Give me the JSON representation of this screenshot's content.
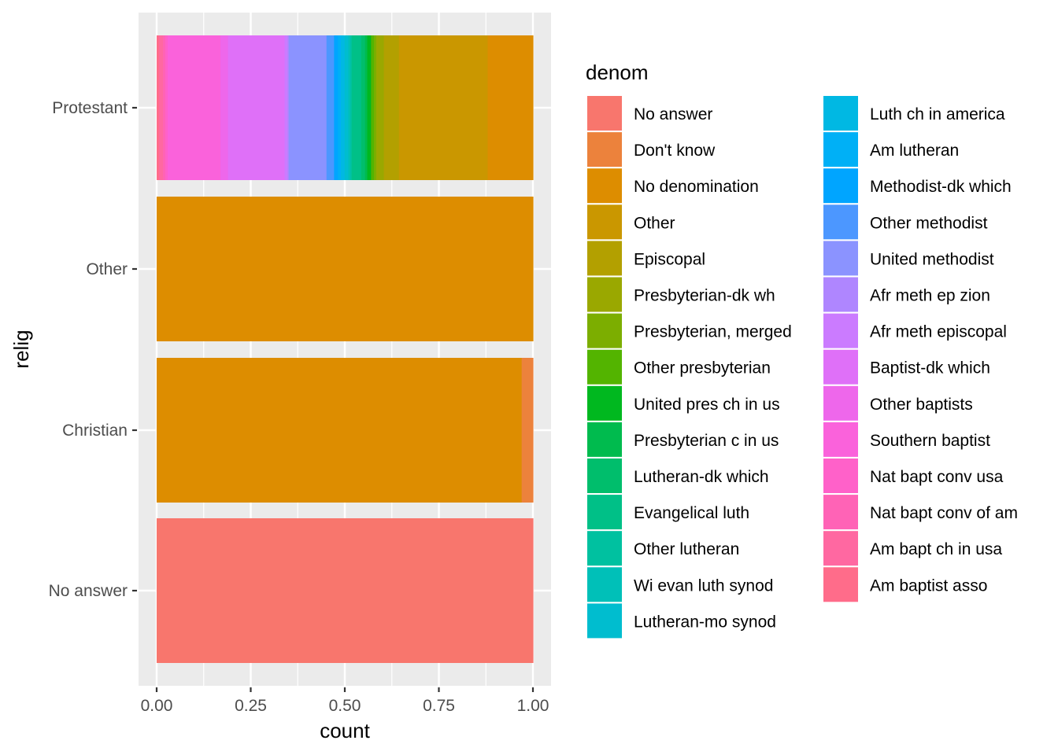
{
  "chart_data": {
    "type": "bar",
    "orientation": "horizontal",
    "position": "fill",
    "xlabel": "count",
    "ylabel": "relig",
    "xlim": [
      0,
      1
    ],
    "x_ticks": [
      "0.00",
      "0.25",
      "0.50",
      "0.75",
      "1.00"
    ],
    "categories": [
      "Protestant",
      "Other",
      "Christian",
      "No answer"
    ],
    "legend": {
      "title": "denom",
      "placement": "right",
      "columns": 2,
      "entries": [
        {
          "name": "No answer",
          "color": "#F8766D"
        },
        {
          "name": "Don't know",
          "color": "#EC823C"
        },
        {
          "name": "No denomination",
          "color": "#DD8D00"
        },
        {
          "name": "Other",
          "color": "#CA9700"
        },
        {
          "name": "Episcopal",
          "color": "#B3A000"
        },
        {
          "name": "Presbyterian-dk wh",
          "color": "#9AA800"
        },
        {
          "name": "Presbyterian, merged",
          "color": "#7CAE00"
        },
        {
          "name": "Other presbyterian",
          "color": "#53B400"
        },
        {
          "name": "United pres ch in us",
          "color": "#00B81F"
        },
        {
          "name": "Presbyterian c in us",
          "color": "#00BB4E"
        },
        {
          "name": "Lutheran-dk which",
          "color": "#00BE6C"
        },
        {
          "name": "Evangelical luth",
          "color": "#00C087"
        },
        {
          "name": "Other lutheran",
          "color": "#00C1A0"
        },
        {
          "name": "Wi evan luth synod",
          "color": "#00C0B8"
        },
        {
          "name": "Lutheran-mo synod",
          "color": "#00BDCF"
        },
        {
          "name": "Luth ch in america",
          "color": "#00B8E3"
        },
        {
          "name": "Am lutheran",
          "color": "#00B0F6"
        },
        {
          "name": "Methodist-dk which",
          "color": "#00A5FF"
        },
        {
          "name": "Other methodist",
          "color": "#4C97FF"
        },
        {
          "name": "United methodist",
          "color": "#8B93FF"
        },
        {
          "name": "Afr meth ep zion",
          "color": "#AF86FF"
        },
        {
          "name": "Afr meth episcopal",
          "color": "#CB7BFF"
        },
        {
          "name": "Baptist-dk which",
          "color": "#DF70F8"
        },
        {
          "name": "Other baptists",
          "color": "#EE67EB"
        },
        {
          "name": "Southern baptist",
          "color": "#FA62DB"
        },
        {
          "name": "Nat bapt conv usa",
          "color": "#FF61C9"
        },
        {
          "name": "Nat bapt conv of am",
          "color": "#FF63B6"
        },
        {
          "name": "Am bapt ch in usa",
          "color": "#FF68A1"
        },
        {
          "name": "Am baptist asso",
          "color": "#FF6C8A"
        }
      ]
    },
    "stacks": [
      {
        "category": "Protestant",
        "segments": [
          {
            "denom": "Am baptist asso",
            "value": 0.007
          },
          {
            "denom": "Am bapt ch in usa",
            "value": 0.01
          },
          {
            "denom": "Nat bapt conv of am",
            "value": 0.006
          },
          {
            "denom": "Nat bapt conv usa",
            "value": 0.006
          },
          {
            "denom": "Southern baptist",
            "value": 0.14
          },
          {
            "denom": "Other baptists",
            "value": 0.02
          },
          {
            "denom": "Baptist-dk which",
            "value": 0.15
          },
          {
            "denom": "Afr meth episcopal",
            "value": 0.008
          },
          {
            "denom": "Afr meth ep zion",
            "value": 0.003
          },
          {
            "denom": "United methodist",
            "value": 0.1
          },
          {
            "denom": "Other methodist",
            "value": 0.02
          },
          {
            "denom": "Methodist-dk which",
            "value": 0.01
          },
          {
            "denom": "Am lutheran",
            "value": 0.008
          },
          {
            "denom": "Luth ch in america",
            "value": 0.01
          },
          {
            "denom": "Lutheran-mo synod",
            "value": 0.01
          },
          {
            "denom": "Wi evan luth synod",
            "value": 0.005
          },
          {
            "denom": "Other lutheran",
            "value": 0.004
          },
          {
            "denom": "Evangelical luth",
            "value": 0.025
          },
          {
            "denom": "Lutheran-dk which",
            "value": 0.01
          },
          {
            "denom": "Presbyterian c in us",
            "value": 0.006
          },
          {
            "denom": "United pres ch in us",
            "value": 0.01
          },
          {
            "denom": "Other presbyterian",
            "value": 0.008
          },
          {
            "denom": "Presbyterian, merged",
            "value": 0.006
          },
          {
            "denom": "Presbyterian-dk wh",
            "value": 0.02
          },
          {
            "denom": "Episcopal",
            "value": 0.04
          },
          {
            "denom": "Other",
            "value": 0.235
          },
          {
            "denom": "No denomination",
            "value": 0.12
          }
        ]
      },
      {
        "category": "Other",
        "segments": [
          {
            "denom": "No denomination",
            "value": 1.0
          }
        ]
      },
      {
        "category": "Christian",
        "segments": [
          {
            "denom": "No denomination",
            "value": 0.97
          },
          {
            "denom": "Don't know",
            "value": 0.03
          }
        ]
      },
      {
        "category": "No answer",
        "segments": [
          {
            "denom": "No answer",
            "value": 1.0
          }
        ]
      }
    ]
  }
}
